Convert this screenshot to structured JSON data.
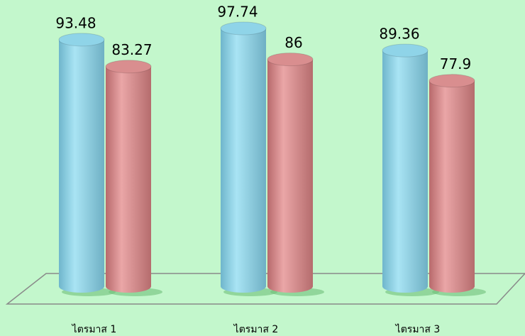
{
  "chart_data": {
    "type": "bar",
    "categories": [
      "ไตรมาส 1",
      "ไตรมาส 2",
      "ไตรมาส 3"
    ],
    "series": [
      {
        "color": "#8fd4e8",
        "values": [
          93.48,
          97.74,
          89.36
        ]
      },
      {
        "color": "#d98e8f",
        "values": [
          83.27,
          86,
          77.9
        ]
      }
    ]
  }
}
